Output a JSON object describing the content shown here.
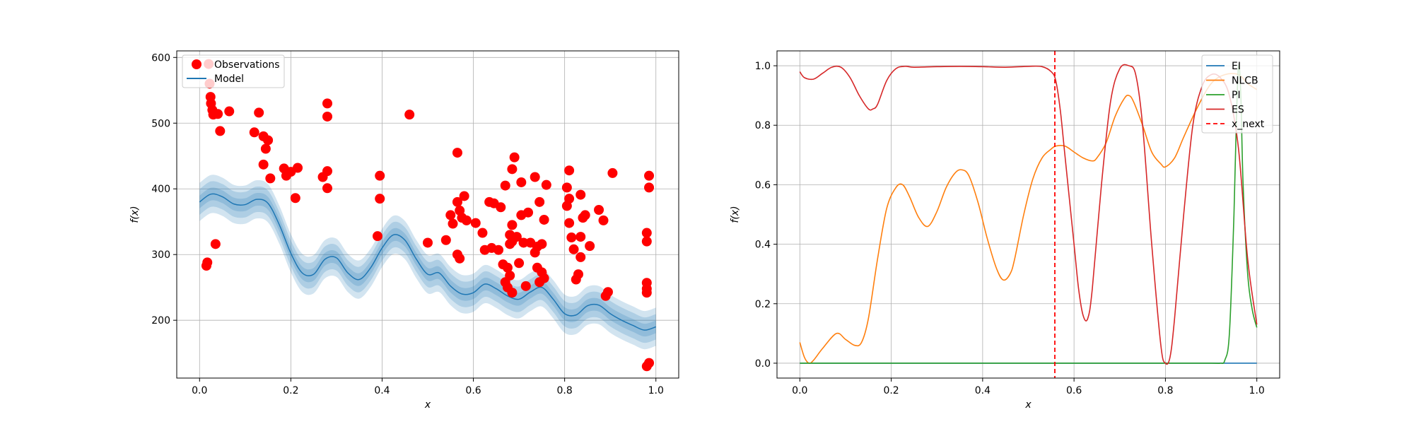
{
  "chart_data": [
    {
      "type": "line",
      "title": "",
      "xlabel": "x",
      "ylabel": "f(x)",
      "xlim": [
        -0.05,
        1.05
      ],
      "ylim": [
        112,
        610
      ],
      "xticks": [
        0.0,
        0.2,
        0.4,
        0.6,
        0.8,
        1.0
      ],
      "xtick_labels": [
        "0.0",
        "0.2",
        "0.4",
        "0.6",
        "0.8",
        "1.0"
      ],
      "yticks": [
        200,
        300,
        400,
        500,
        600
      ],
      "ytick_labels": [
        "200",
        "300",
        "400",
        "500",
        "600"
      ],
      "grid": true,
      "legend": {
        "placement": "upper-left",
        "entries": [
          "Observations",
          "Model"
        ]
      },
      "colors": {
        "observations": "#ff0000",
        "model": "#1f77b4"
      },
      "model": {
        "name": "Model",
        "band_sigma_multiples": [
          1,
          2,
          3
        ],
        "sigma": 9.7,
        "x": [
          0.0,
          0.025,
          0.05,
          0.075,
          0.1,
          0.125,
          0.15,
          0.175,
          0.2,
          0.225,
          0.25,
          0.275,
          0.3,
          0.325,
          0.35,
          0.375,
          0.4,
          0.425,
          0.45,
          0.475,
          0.5,
          0.525,
          0.55,
          0.575,
          0.6,
          0.625,
          0.65,
          0.675,
          0.7,
          0.725,
          0.75,
          0.775,
          0.8,
          0.825,
          0.85,
          0.875,
          0.9,
          0.925,
          0.95,
          0.975,
          1.0
        ],
        "mean": [
          380,
          392,
          388,
          377,
          376,
          384,
          378,
          345,
          302,
          272,
          270,
          293,
          295,
          272,
          262,
          280,
          310,
          330,
          322,
          293,
          270,
          272,
          252,
          240,
          242,
          255,
          248,
          237,
          232,
          243,
          250,
          232,
          210,
          208,
          222,
          223,
          210,
          200,
          192,
          185,
          190
        ]
      },
      "series": [
        {
          "name": "Observations",
          "x": [
            0.015,
            0.017,
            0.02,
            0.022,
            0.024,
            0.025,
            0.028,
            0.03,
            0.035,
            0.04,
            0.045,
            0.065,
            0.12,
            0.13,
            0.14,
            0.14,
            0.145,
            0.15,
            0.155,
            0.185,
            0.19,
            0.2,
            0.21,
            0.215,
            0.27,
            0.28,
            0.28,
            0.28,
            0.28,
            0.39,
            0.395,
            0.395,
            0.46,
            0.5,
            0.54,
            0.55,
            0.555,
            0.565,
            0.565,
            0.565,
            0.57,
            0.57,
            0.575,
            0.58,
            0.585,
            0.605,
            0.62,
            0.625,
            0.635,
            0.64,
            0.645,
            0.655,
            0.66,
            0.665,
            0.67,
            0.67,
            0.675,
            0.675,
            0.68,
            0.68,
            0.68,
            0.685,
            0.685,
            0.685,
            0.685,
            0.69,
            0.695,
            0.7,
            0.705,
            0.705,
            0.71,
            0.715,
            0.72,
            0.725,
            0.735,
            0.735,
            0.74,
            0.74,
            0.745,
            0.745,
            0.75,
            0.75,
            0.755,
            0.755,
            0.76,
            0.805,
            0.805,
            0.81,
            0.81,
            0.81,
            0.815,
            0.82,
            0.825,
            0.83,
            0.835,
            0.835,
            0.835,
            0.84,
            0.845,
            0.855,
            0.875,
            0.885,
            0.89,
            0.895,
            0.905,
            0.98,
            0.98,
            0.98,
            0.98,
            0.98,
            0.98,
            0.985,
            0.985,
            0.985
          ],
          "y": [
            283,
            288,
            590,
            560,
            540,
            530,
            520,
            513,
            316,
            514,
            488,
            518,
            486,
            516,
            480,
            437,
            461,
            474,
            416,
            431,
            420,
            426,
            386,
            432,
            418,
            530,
            510,
            427,
            401,
            328,
            385,
            420,
            513,
            318,
            322,
            360,
            347,
            455,
            380,
            300,
            294,
            367,
            356,
            389,
            352,
            348,
            333,
            307,
            380,
            310,
            378,
            307,
            372,
            285,
            405,
            258,
            250,
            280,
            330,
            268,
            316,
            320,
            242,
            345,
            430,
            448,
            327,
            287,
            410,
            360,
            318,
            252,
            364,
            318,
            418,
            303,
            280,
            312,
            380,
            258,
            273,
            316,
            353,
            264,
            406,
            402,
            374,
            385,
            348,
            428,
            326,
            308,
            262,
            270,
            391,
            327,
            296,
            356,
            360,
            313,
            368,
            352,
            237,
            243,
            424,
            333,
            320,
            257,
            248,
            242,
            130,
            420,
            402,
            135
          ]
        }
      ]
    },
    {
      "type": "line",
      "title": "",
      "xlabel": "x",
      "ylabel": "f(x)",
      "xlim": [
        -0.05,
        1.05
      ],
      "ylim": [
        -0.05,
        1.05
      ],
      "xticks": [
        0.0,
        0.2,
        0.4,
        0.6,
        0.8,
        1.0
      ],
      "xtick_labels": [
        "0.0",
        "0.2",
        "0.4",
        "0.6",
        "0.8",
        "1.0"
      ],
      "yticks": [
        0.0,
        0.2,
        0.4,
        0.6,
        0.8,
        1.0
      ],
      "ytick_labels": [
        "0.0",
        "0.2",
        "0.4",
        "0.6",
        "0.8",
        "1.0"
      ],
      "grid": true,
      "legend": {
        "placement": "upper-right",
        "entries": [
          "EI",
          "NLCB",
          "PI",
          "ES",
          "x_next"
        ]
      },
      "x_next": 0.558,
      "series": [
        {
          "name": "EI",
          "color": "#1f77b4",
          "x": [
            0.0,
            0.1,
            0.2,
            0.3,
            0.4,
            0.5,
            0.6,
            0.7,
            0.8,
            0.9,
            0.92,
            0.94,
            0.96,
            0.97,
            0.98,
            1.0
          ],
          "y": [
            0.0,
            0.0,
            0.0,
            0.0,
            0.0,
            0.0,
            0.0,
            0.0,
            0.0,
            0.0,
            0.0,
            0.0,
            0.0,
            0.0,
            0.0,
            0.0
          ]
        },
        {
          "name": "NLCB",
          "color": "#ff7f0e",
          "x": [
            0.0,
            0.01,
            0.02,
            0.03,
            0.05,
            0.08,
            0.1,
            0.12,
            0.135,
            0.15,
            0.17,
            0.19,
            0.21,
            0.225,
            0.24,
            0.26,
            0.28,
            0.3,
            0.32,
            0.34,
            0.355,
            0.37,
            0.39,
            0.41,
            0.43,
            0.445,
            0.46,
            0.47,
            0.49,
            0.51,
            0.53,
            0.55,
            0.56,
            0.58,
            0.6,
            0.62,
            0.64,
            0.65,
            0.67,
            0.69,
            0.71,
            0.72,
            0.73,
            0.75,
            0.77,
            0.79,
            0.8,
            0.82,
            0.84,
            0.87,
            0.9,
            0.93,
            0.96,
            0.98,
            1.0
          ],
          "y": [
            0.07,
            0.02,
            0.0,
            0.01,
            0.05,
            0.1,
            0.08,
            0.06,
            0.07,
            0.15,
            0.35,
            0.52,
            0.59,
            0.6,
            0.56,
            0.49,
            0.46,
            0.51,
            0.59,
            0.64,
            0.65,
            0.63,
            0.54,
            0.42,
            0.32,
            0.28,
            0.3,
            0.35,
            0.5,
            0.62,
            0.69,
            0.72,
            0.73,
            0.73,
            0.71,
            0.69,
            0.68,
            0.69,
            0.74,
            0.83,
            0.89,
            0.9,
            0.88,
            0.8,
            0.71,
            0.67,
            0.66,
            0.69,
            0.76,
            0.86,
            0.94,
            0.97,
            0.97,
            0.94,
            0.92
          ]
        },
        {
          "name": "PI",
          "color": "#2ca02c",
          "x": [
            0.0,
            0.1,
            0.2,
            0.3,
            0.4,
            0.5,
            0.6,
            0.7,
            0.8,
            0.9,
            0.92,
            0.93,
            0.94,
            0.95,
            0.955,
            0.96,
            0.965,
            0.97,
            0.98,
            0.99,
            1.0
          ],
          "y": [
            0.0,
            0.0,
            0.0,
            0.0,
            0.0,
            0.0,
            0.0,
            0.0,
            0.0,
            0.0,
            0.0,
            0.01,
            0.1,
            0.5,
            0.8,
            1.0,
            0.9,
            0.6,
            0.3,
            0.18,
            0.12
          ]
        },
        {
          "name": "ES",
          "color": "#d62728",
          "x": [
            0.0,
            0.01,
            0.03,
            0.05,
            0.07,
            0.09,
            0.11,
            0.13,
            0.15,
            0.16,
            0.17,
            0.19,
            0.21,
            0.23,
            0.25,
            0.3,
            0.35,
            0.4,
            0.45,
            0.5,
            0.53,
            0.55,
            0.56,
            0.57,
            0.58,
            0.6,
            0.61,
            0.62,
            0.63,
            0.64,
            0.66,
            0.68,
            0.7,
            0.72,
            0.735,
            0.75,
            0.77,
            0.79,
            0.8,
            0.81,
            0.82,
            0.84,
            0.86,
            0.88,
            0.9,
            0.92,
            0.94,
            0.96,
            0.98,
            1.0
          ],
          "y": [
            0.98,
            0.96,
            0.955,
            0.975,
            0.995,
            0.995,
            0.96,
            0.9,
            0.855,
            0.855,
            0.87,
            0.95,
            0.99,
            0.998,
            0.995,
            0.997,
            0.998,
            0.997,
            0.995,
            0.998,
            0.997,
            0.98,
            0.95,
            0.85,
            0.7,
            0.4,
            0.25,
            0.16,
            0.15,
            0.25,
            0.6,
            0.88,
            0.99,
            1.0,
            0.97,
            0.8,
            0.4,
            0.06,
            0.0,
            0.02,
            0.15,
            0.5,
            0.8,
            0.93,
            0.97,
            0.96,
            0.9,
            0.72,
            0.35,
            0.13
          ]
        }
      ]
    }
  ]
}
